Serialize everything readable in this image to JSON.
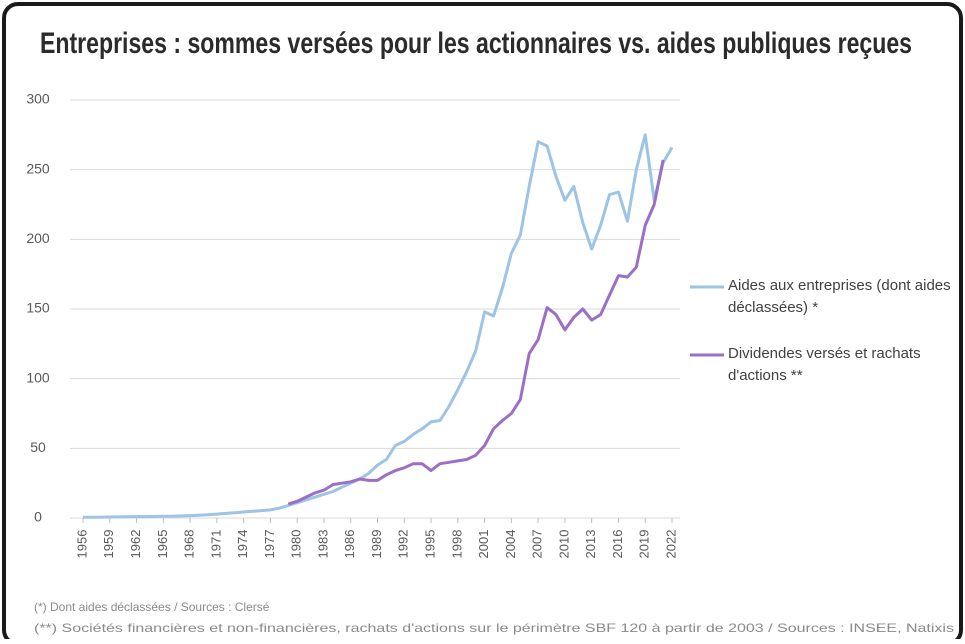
{
  "chart_data": {
    "type": "line",
    "title": "Entreprises : sommes versées pour les actionnaires vs. aides publiques reçues",
    "x": [
      1956,
      1957,
      1958,
      1959,
      1960,
      1961,
      1962,
      1963,
      1964,
      1965,
      1966,
      1967,
      1968,
      1969,
      1970,
      1971,
      1972,
      1973,
      1974,
      1975,
      1976,
      1977,
      1978,
      1979,
      1980,
      1981,
      1982,
      1983,
      1984,
      1985,
      1986,
      1987,
      1988,
      1989,
      1990,
      1991,
      1992,
      1993,
      1994,
      1995,
      1996,
      1997,
      1998,
      1999,
      2000,
      2001,
      2002,
      2003,
      2004,
      2005,
      2006,
      2007,
      2008,
      2009,
      2010,
      2011,
      2012,
      2013,
      2014,
      2015,
      2016,
      2017,
      2018,
      2019,
      2020,
      2021,
      2022
    ],
    "series": [
      {
        "name": "Aides aux entreprises (dont aides déclassées) *",
        "color": "#9dc3e6",
        "values": [
          0.5,
          0.5,
          0.6,
          0.7,
          0.8,
          0.9,
          1,
          1,
          1.1,
          1.2,
          1.3,
          1.5,
          1.7,
          2,
          2.3,
          2.8,
          3.3,
          3.8,
          4.3,
          4.8,
          5.3,
          5.8,
          7,
          9,
          11,
          13,
          15,
          17,
          19,
          22,
          25,
          28,
          32,
          38,
          42,
          52,
          55,
          60,
          64,
          69,
          70,
          80,
          92,
          105,
          120,
          148,
          145,
          165,
          190,
          203,
          238,
          270,
          267,
          245,
          228,
          238,
          212,
          193,
          210,
          232,
          234,
          213,
          250,
          275,
          228,
          255,
          266
        ]
      },
      {
        "name": "Dividendes versés et rachats d'actions **",
        "color": "#9b6fc4",
        "values": [
          null,
          null,
          null,
          null,
          null,
          null,
          null,
          null,
          null,
          null,
          null,
          null,
          null,
          null,
          null,
          null,
          null,
          null,
          null,
          null,
          null,
          null,
          null,
          10,
          12,
          15,
          18,
          20,
          24,
          25,
          26,
          28,
          27,
          27,
          31,
          34,
          36,
          39,
          39,
          34,
          39,
          40,
          41,
          42,
          45,
          52,
          64,
          70,
          75,
          85,
          118,
          128,
          151,
          146,
          135,
          144,
          150,
          142,
          146,
          160,
          174,
          173,
          180,
          210,
          225,
          257,
          null
        ]
      }
    ],
    "xlim": [
      1956,
      2022
    ],
    "xticks": [
      1956,
      1959,
      1962,
      1965,
      1968,
      1971,
      1974,
      1977,
      1980,
      1983,
      1986,
      1989,
      1992,
      1995,
      1998,
      2001,
      2004,
      2007,
      2010,
      2013,
      2016,
      2019,
      2022
    ],
    "ylim": [
      0,
      300
    ],
    "yticks": [
      0,
      50,
      100,
      150,
      200,
      250,
      300
    ],
    "grid": true,
    "legend": "right",
    "footnotes": [
      "(*)   Dont aides déclassées / Sources : Clersé",
      "(**)  Sociétés financières et non-financières, rachats d'actions sur le périmètre SBF 120 à partir de 2003 / Sources : INSEE, Natixis"
    ]
  }
}
